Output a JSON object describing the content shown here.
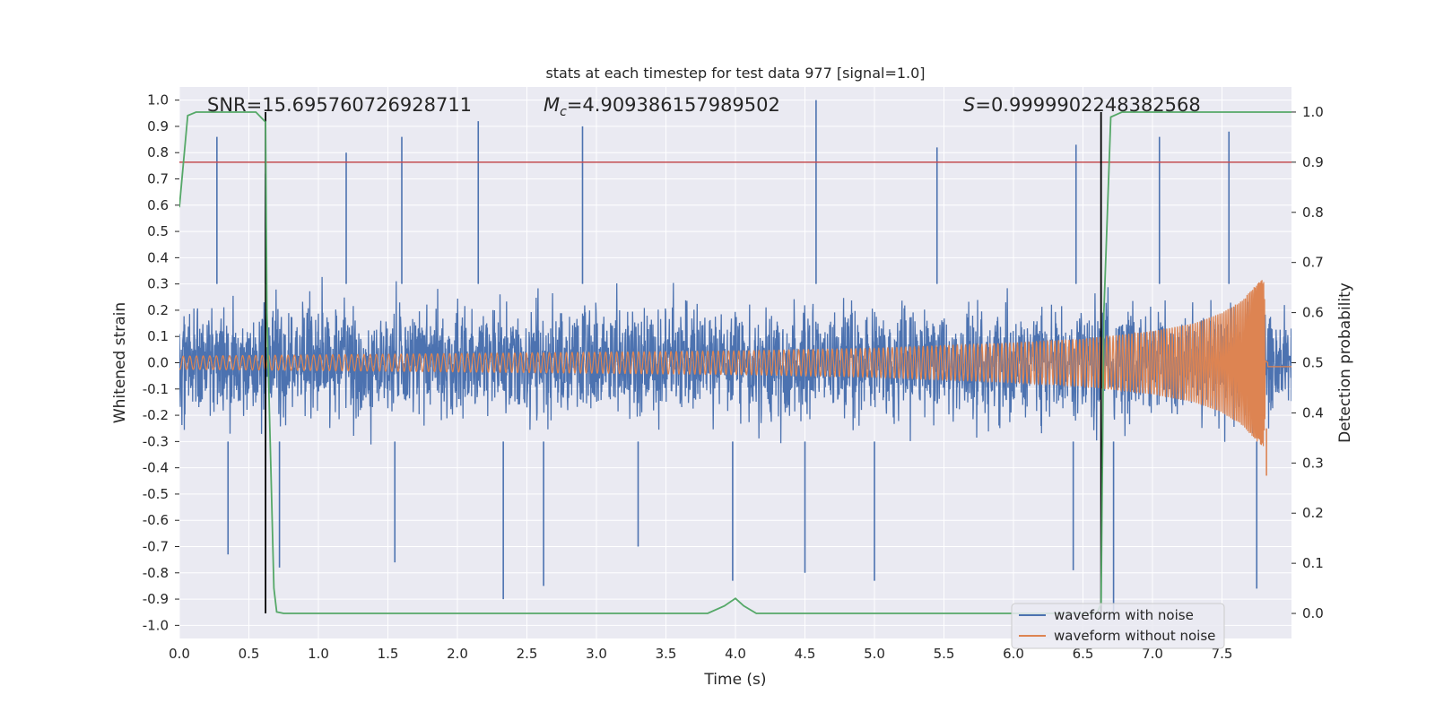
{
  "chart_data": {
    "type": "line",
    "title": "stats at each timestep for test data 977 [signal=1.0]",
    "xlabel": "Time (s)",
    "ylabel": "Whitened strain",
    "ylabel_right": "Detection probability",
    "xlim": [
      0.0,
      8.0
    ],
    "ylim": [
      -1.05,
      1.05
    ],
    "ylim_right": [
      -0.05,
      1.05
    ],
    "x_ticks": [
      "0.0",
      "0.5",
      "1.0",
      "1.5",
      "2.0",
      "2.5",
      "3.0",
      "3.5",
      "4.0",
      "4.5",
      "5.0",
      "5.5",
      "6.0",
      "6.5",
      "7.0",
      "7.5"
    ],
    "y_ticks": [
      "1.0",
      "0.9",
      "0.8",
      "0.7",
      "0.6",
      "0.5",
      "0.4",
      "0.3",
      "0.2",
      "0.1",
      "0.0",
      "-0.1",
      "-0.2",
      "-0.3",
      "-0.4",
      "-0.5",
      "-0.6",
      "-0.7",
      "-0.8",
      "-0.9",
      "-1.0"
    ],
    "y_ticks_right": [
      "1.0",
      "0.9",
      "0.8",
      "0.7",
      "0.6",
      "0.5",
      "0.4",
      "0.3",
      "0.2",
      "0.1",
      "0.0"
    ],
    "grid": true,
    "annotations": {
      "snr_label": "SNR=15.695760726928711",
      "mc_symbol": "M",
      "mc_sub": "c",
      "mc_value": "=4.909386157989502",
      "s_symbol": "S",
      "s_value": "=0.9999902248382568"
    },
    "threshold": {
      "value": 0.9,
      "axis": "right",
      "color": "#c44e52"
    },
    "vertical_markers": {
      "x": [
        0.62,
        6.63
      ],
      "color": "#000000"
    },
    "series": [
      {
        "name": "waveform with noise",
        "axis": "left",
        "color": "#4c72b0",
        "envelope_typical": 0.4,
        "x_peaks": [
          0.27,
          0.62,
          1.2,
          1.6,
          2.15,
          2.9,
          4.58,
          5.45,
          6.45,
          7.05,
          7.55
        ],
        "y_peaks": [
          0.86,
          0.72,
          0.8,
          0.86,
          0.92,
          0.9,
          1.0,
          0.82,
          0.83,
          0.86,
          0.88
        ],
        "x_troughs": [
          0.35,
          0.72,
          1.55,
          2.33,
          2.62,
          3.3,
          3.98,
          4.5,
          5.0,
          6.43,
          6.72,
          7.75
        ],
        "y_troughs": [
          -0.73,
          -0.78,
          -0.76,
          -0.9,
          -0.85,
          -0.7,
          -0.83,
          -0.8,
          -0.83,
          -0.79,
          -0.98,
          -0.86
        ]
      },
      {
        "name": "waveform without noise",
        "axis": "left",
        "color": "#dd8452",
        "x_envelope": [
          0.0,
          1.0,
          2.0,
          3.0,
          4.0,
          5.0,
          6.0,
          6.5,
          7.0,
          7.3,
          7.5,
          7.65,
          7.75,
          7.8,
          7.82,
          7.83,
          8.0
        ],
        "y_envelope": [
          0.025,
          0.03,
          0.035,
          0.04,
          0.045,
          0.055,
          0.075,
          0.09,
          0.12,
          0.15,
          0.19,
          0.24,
          0.3,
          0.32,
          0.1,
          0.02,
          0.02
        ]
      },
      {
        "name": "detection probability",
        "axis": "right",
        "color": "#55a868",
        "x": [
          0.0,
          0.06,
          0.12,
          0.2,
          0.55,
          0.62,
          0.63,
          0.68,
          0.7,
          0.75,
          3.8,
          3.92,
          4.0,
          4.06,
          4.15,
          6.6,
          6.63,
          6.65,
          6.7,
          6.78,
          8.0
        ],
        "y": [
          0.81,
          0.993,
          1.0,
          1.0,
          1.0,
          0.98,
          0.6,
          0.05,
          0.003,
          0.0,
          0.0,
          0.015,
          0.03,
          0.015,
          0.0,
          0.0,
          0.02,
          0.6,
          0.99,
          1.0,
          1.0
        ]
      }
    ],
    "legend": {
      "position": "bottom-right",
      "entries": [
        "waveform with noise",
        "waveform without noise"
      ]
    }
  }
}
